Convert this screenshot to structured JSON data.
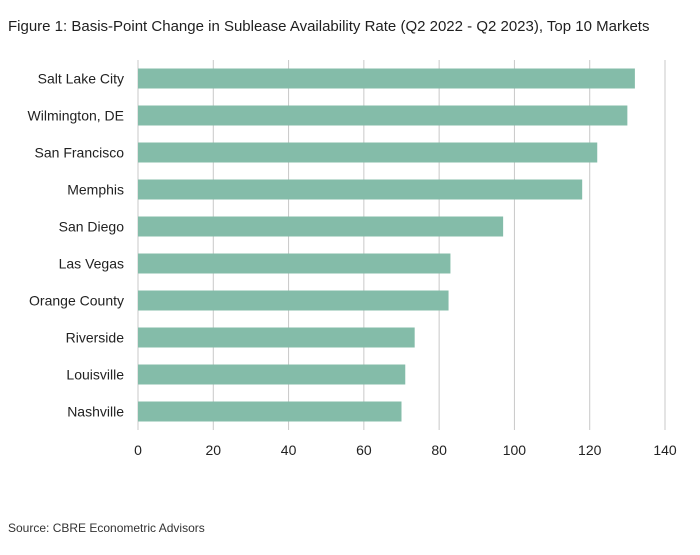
{
  "figure": {
    "title": "Figure 1: Basis-Point Change in Sublease Availability Rate (Q2 2022 - Q2 2023), Top 10 Markets",
    "source": "Source: CBRE Econometric Advisors"
  },
  "chart_data": {
    "type": "bar",
    "orientation": "horizontal",
    "categories": [
      "Salt Lake City",
      "Wilmington, DE",
      "San Francisco",
      "Memphis",
      "San Diego",
      "Las Vegas",
      "Orange County",
      "Riverside",
      "Louisville",
      "Nashville"
    ],
    "values": [
      132,
      130,
      122,
      118,
      97,
      83,
      82.5,
      73.5,
      71,
      70
    ],
    "xticks": [
      0,
      20,
      40,
      60,
      80,
      100,
      120,
      140
    ],
    "xlim": [
      0,
      140
    ],
    "grid": true,
    "bar_color": "#84bca9",
    "gridline_color": "#c8c8c8"
  }
}
